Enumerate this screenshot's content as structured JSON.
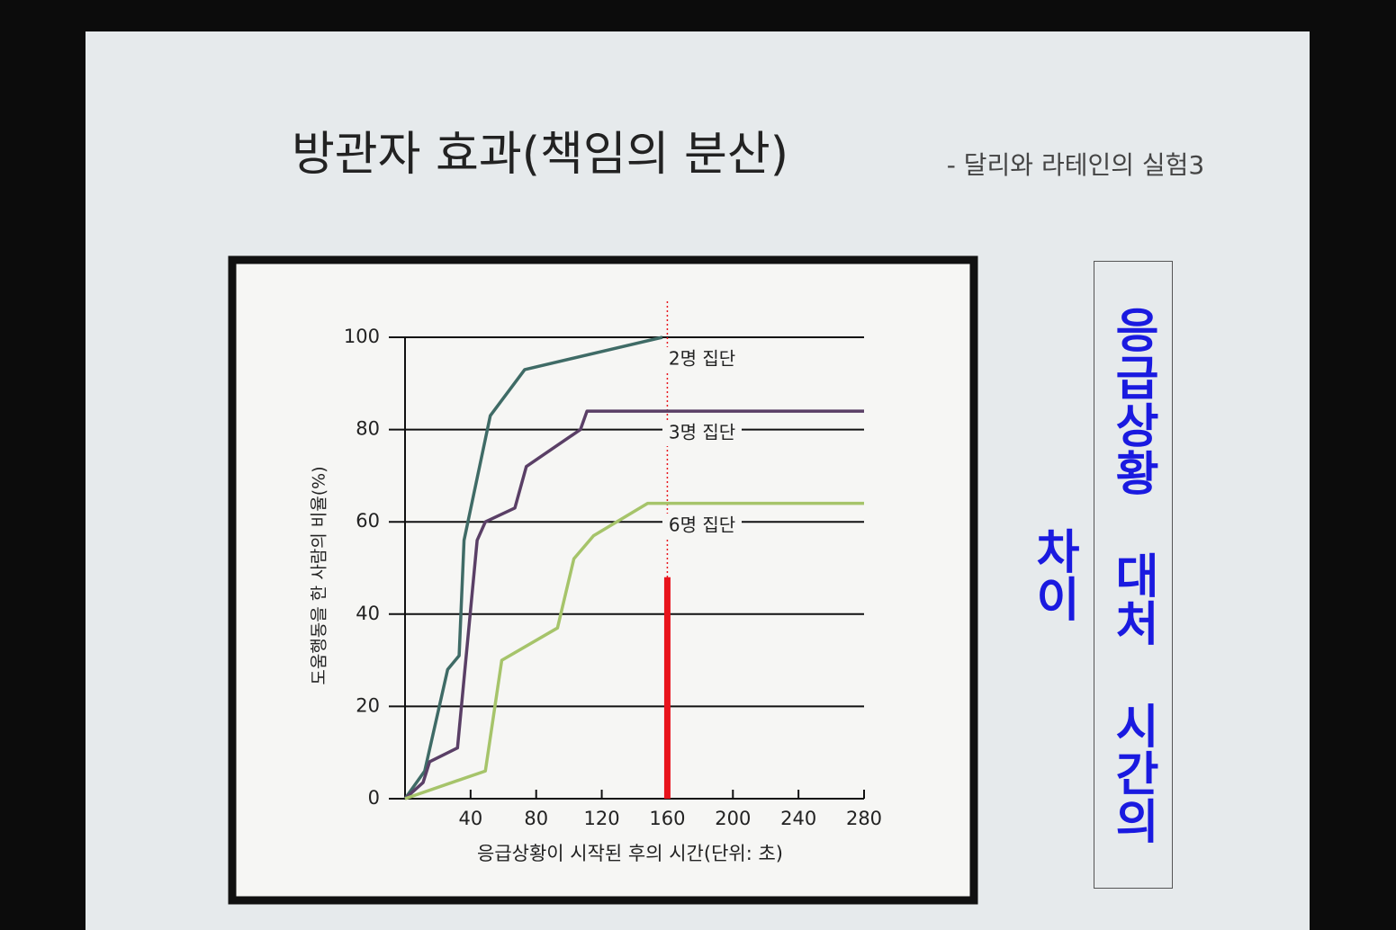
{
  "slide": {
    "title": "방관자 효과(책임의 분산)",
    "subtitle": "- 달리와 라테인의 실험3",
    "side_label": "응급상황 대처 시간의 차이"
  },
  "chart_data": {
    "type": "line",
    "x_label": "응급상황이 시작된 후의 시간(단위: 초)",
    "y_label": "도움행동을 한 사람의 비율(%)",
    "xlim": [
      0,
      280
    ],
    "xticks": [
      40,
      80,
      120,
      160,
      200,
      240,
      280
    ],
    "ylim": [
      0,
      100
    ],
    "yticks": [
      0,
      20,
      40,
      60,
      80,
      100
    ],
    "grid": true,
    "series": [
      {
        "name": "2명 집단",
        "color": "#3f6b66",
        "x": [
          0,
          12,
          26,
          33,
          36,
          52,
          73,
          157
        ],
        "values": [
          0,
          6,
          28,
          31,
          56,
          83,
          93,
          100
        ]
      },
      {
        "name": "3명 집단",
        "color": "#5a3f66",
        "x": [
          0,
          11,
          15,
          32,
          44,
          49,
          67,
          74,
          107,
          111,
          280
        ],
        "values": [
          0,
          3.5,
          8,
          11,
          56,
          60,
          63,
          72,
          80,
          84,
          84
        ]
      },
      {
        "name": "6명 집단",
        "color": "#a6c46a",
        "x": [
          0,
          49,
          59,
          93,
          103,
          115,
          148,
          280
        ],
        "values": [
          0,
          6,
          30,
          37,
          52,
          57,
          64,
          64
        ]
      }
    ],
    "highlight": {
      "x": 160,
      "value": 48,
      "color": "#e8141c"
    }
  }
}
